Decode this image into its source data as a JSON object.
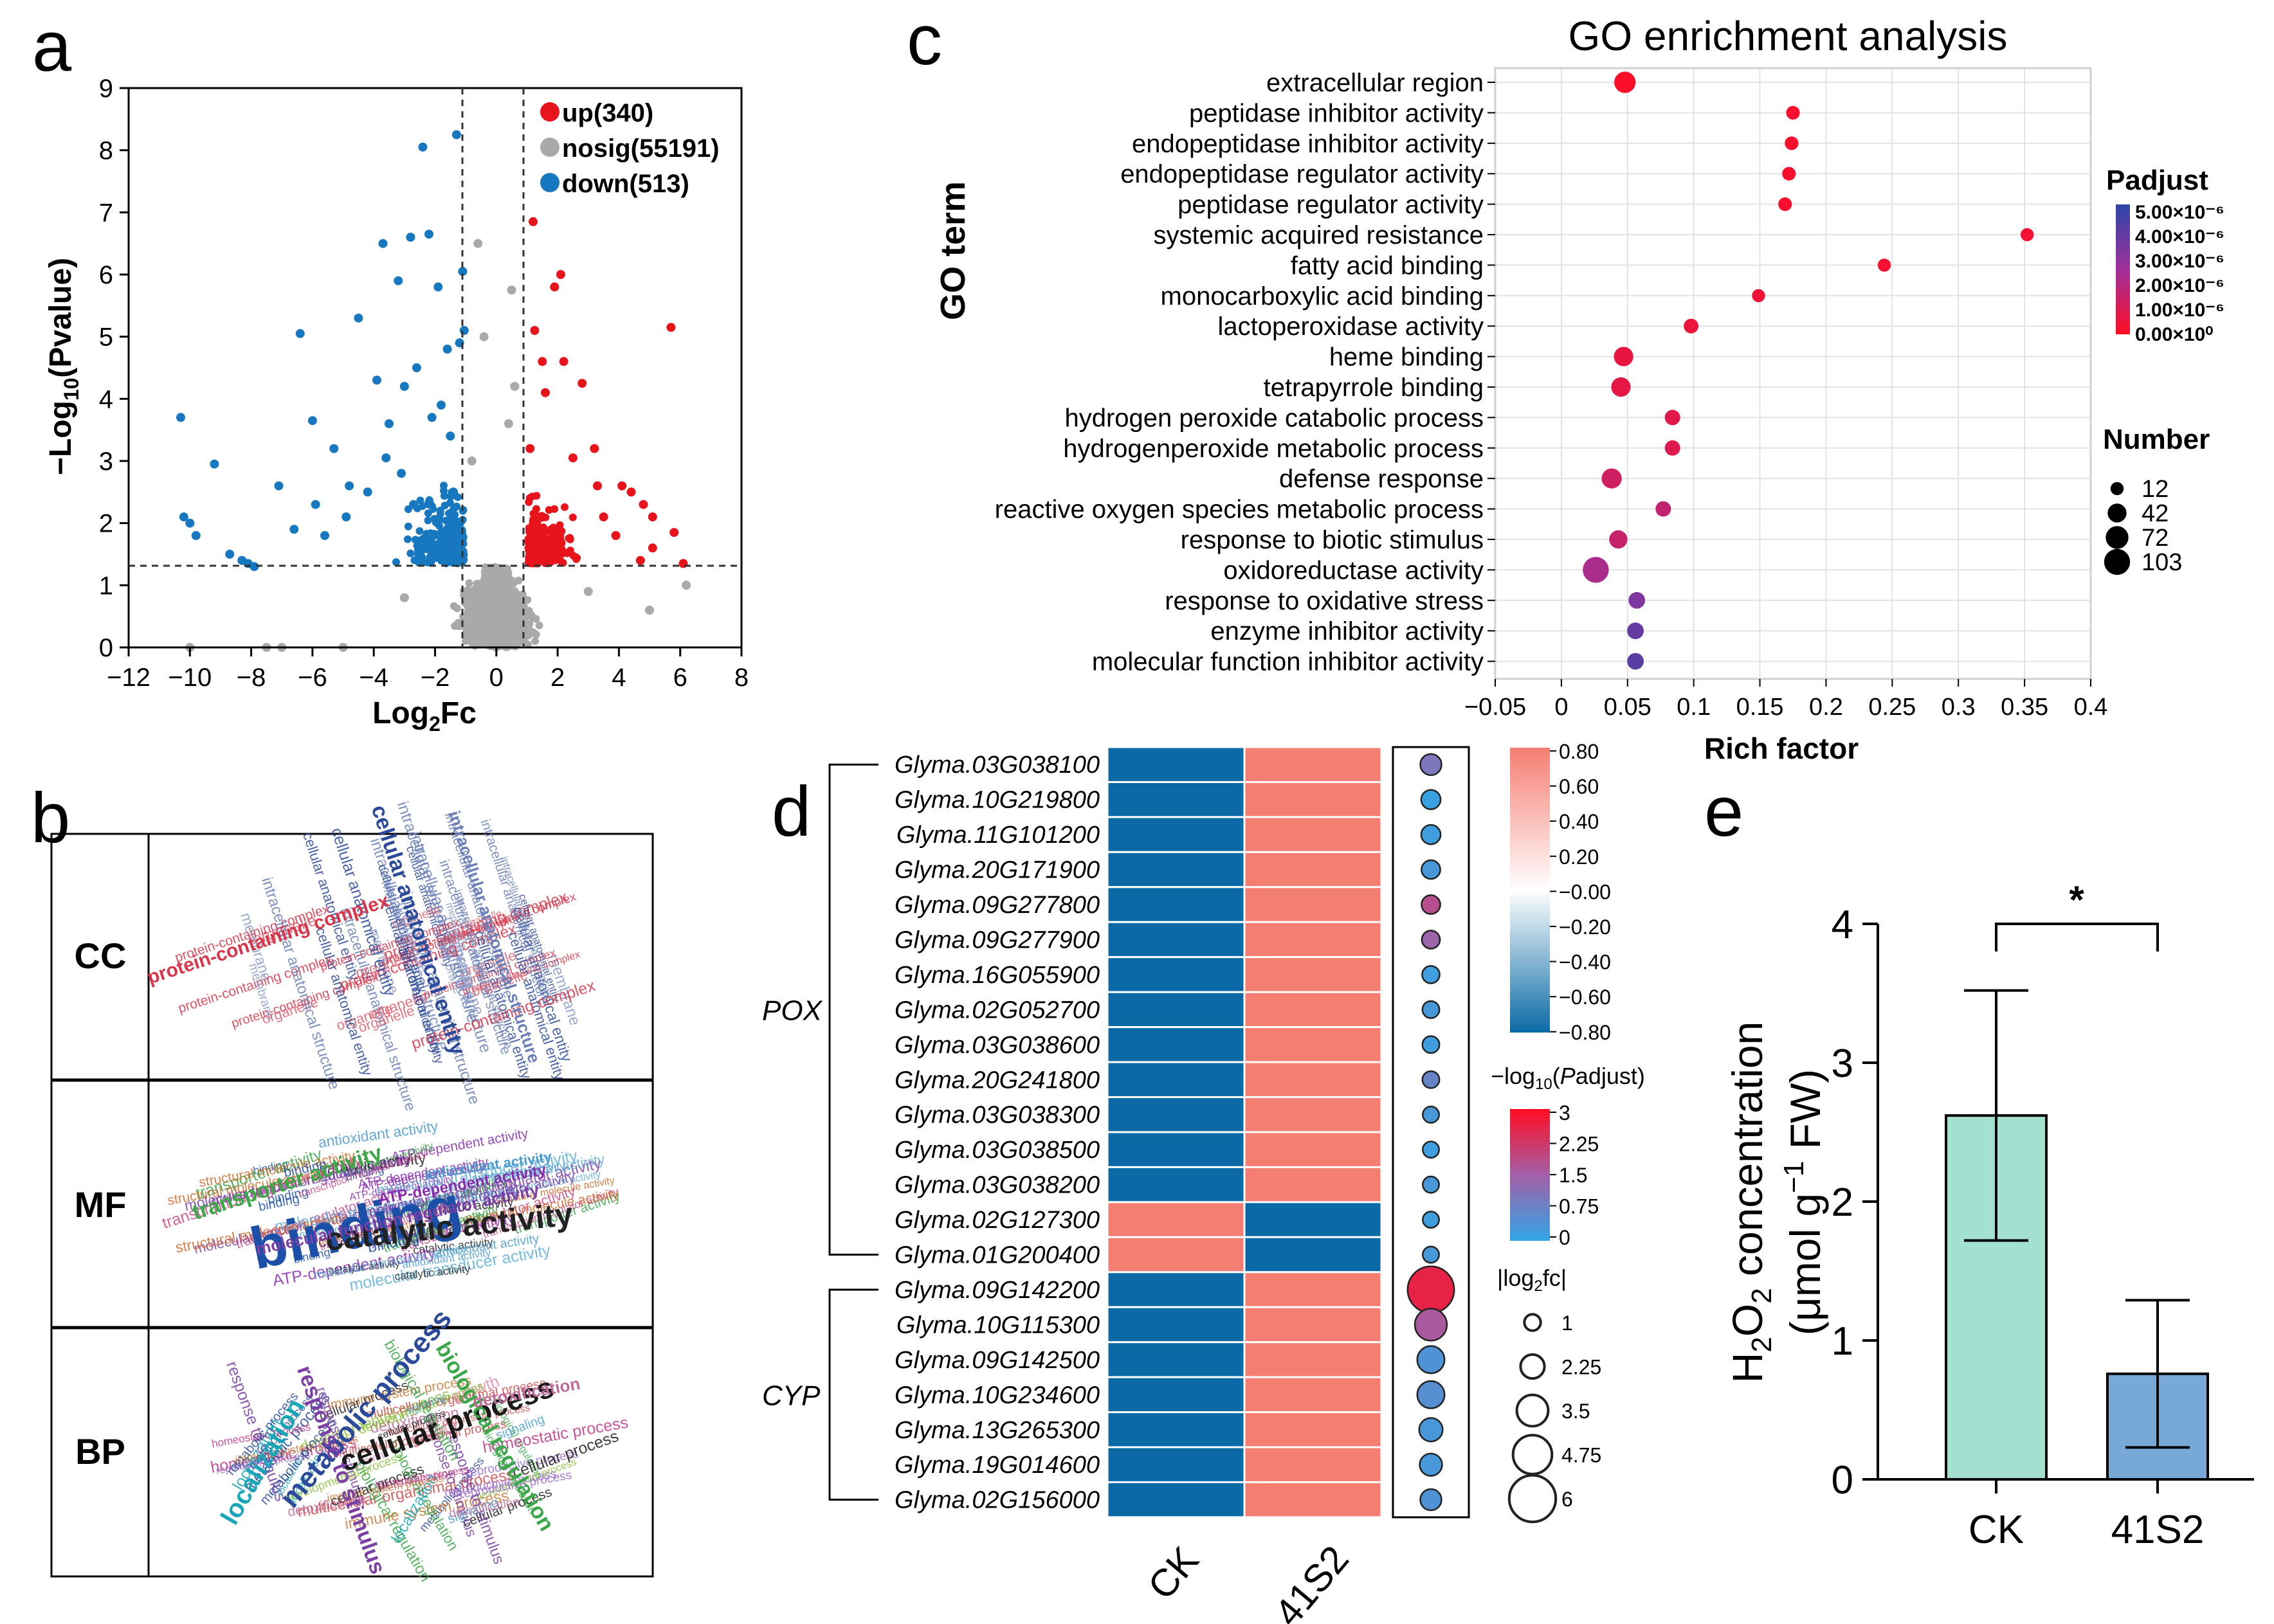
{
  "panels": {
    "a": "a",
    "b": "b",
    "c": "c",
    "d": "d",
    "e": "e"
  },
  "colors": {
    "up": "#e8141c",
    "nosig": "#a9a9a9",
    "down": "#1778c0",
    "bar_ck": "#a3e0cf",
    "bar_41s2": "#78a9d6",
    "heat_high": "#f57e73",
    "heat_low": "#0b6aa6"
  },
  "chart_data": [
    {
      "panel": "a",
      "type": "scatter",
      "title": "",
      "xlabel": "Log2Fc",
      "ylabel": "-Log10(Pvalue)",
      "xlim": [
        -12,
        8
      ],
      "ylim": [
        0,
        9
      ],
      "xticks": [
        "-12",
        "-10",
        "-8",
        "-6",
        "-4",
        "-2",
        "0",
        "2",
        "4",
        "6",
        "8"
      ],
      "yticks": [
        "0",
        "1",
        "2",
        "3",
        "4",
        "5",
        "6",
        "7",
        "8",
        "9"
      ],
      "thresholds": {
        "x": [
          -1,
          1
        ],
        "y": 1.3
      },
      "legend": [
        {
          "key": "up",
          "label": "up(340)"
        },
        {
          "key": "nosig",
          "label": "nosig(55191)"
        },
        {
          "key": "down",
          "label": "down(513)"
        }
      ],
      "labeled_points": {
        "down": [
          [
            -10.3,
            3.7
          ],
          [
            -10.2,
            2.1
          ],
          [
            -10,
            2.0
          ],
          [
            -9.8,
            1.8
          ],
          [
            -9.2,
            2.95
          ],
          [
            -8.7,
            1.5
          ],
          [
            -8.3,
            1.4
          ],
          [
            -8.1,
            1.35
          ],
          [
            -7.9,
            1.3
          ],
          [
            -7.1,
            2.6
          ],
          [
            -6.4,
            5.05
          ],
          [
            -6,
            3.65
          ],
          [
            -5.6,
            1.8
          ],
          [
            -5.3,
            3.2
          ],
          [
            -4.9,
            2.1
          ],
          [
            -4.5,
            5.3
          ],
          [
            -4.2,
            2.5
          ],
          [
            -3.9,
            4.3
          ],
          [
            -3.7,
            6.5
          ],
          [
            -3.5,
            3.6
          ],
          [
            -3.2,
            5.9
          ],
          [
            -3.1,
            2.8
          ],
          [
            -3,
            4.2
          ],
          [
            -2.8,
            6.6
          ],
          [
            -2.6,
            4.5
          ],
          [
            -2.4,
            8.05
          ],
          [
            -2.2,
            6.65
          ],
          [
            -2.1,
            3.7
          ],
          [
            -1.9,
            5.8
          ],
          [
            -1.6,
            4.8
          ],
          [
            -1.5,
            3.4
          ],
          [
            -1.4,
            2.5
          ],
          [
            -1.3,
            8.25
          ],
          [
            -1.1,
            6.05
          ],
          [
            -1.05,
            5.1
          ],
          [
            -1.2,
            4.9
          ],
          [
            -1.8,
            3.9
          ],
          [
            -2.7,
            2.3
          ],
          [
            -3.6,
            3.05
          ],
          [
            -4.8,
            2.6
          ],
          [
            -5.9,
            2.3
          ],
          [
            -6.6,
            1.9
          ]
        ],
        "up": [
          [
            1.1,
            3.2
          ],
          [
            1.2,
            6.85
          ],
          [
            1.25,
            5.1
          ],
          [
            1.5,
            4.6
          ],
          [
            1.6,
            4.1
          ],
          [
            1.9,
            5.8
          ],
          [
            2.1,
            6.0
          ],
          [
            2.2,
            4.6
          ],
          [
            2.5,
            3.05
          ],
          [
            2.8,
            4.25
          ],
          [
            3.2,
            3.2
          ],
          [
            3.3,
            2.6
          ],
          [
            3.5,
            2.1
          ],
          [
            4.1,
            2.6
          ],
          [
            4.4,
            2.5
          ],
          [
            4.8,
            2.3
          ],
          [
            5.1,
            2.1
          ],
          [
            5.7,
            5.15
          ],
          [
            5.8,
            1.85
          ],
          [
            6.1,
            1.35
          ],
          [
            5.1,
            1.6
          ],
          [
            4.7,
            1.4
          ],
          [
            3.9,
            1.8
          ]
        ],
        "nosig": [
          [
            -0.6,
            6.5
          ],
          [
            -0.4,
            5.0
          ],
          [
            0.5,
            5.75
          ],
          [
            -0.8,
            3.0
          ],
          [
            0.4,
            3.6
          ],
          [
            0.6,
            4.2
          ],
          [
            -7,
            0
          ],
          [
            -5,
            0
          ],
          [
            -3,
            0.8
          ],
          [
            3,
            0.9
          ],
          [
            5,
            0.6
          ],
          [
            6.2,
            1.0
          ],
          [
            -10,
            0
          ],
          [
            -7.5,
            0
          ]
        ]
      }
    },
    {
      "panel": "b",
      "type": "table",
      "categories": [
        "CC",
        "MF",
        "BP"
      ],
      "wordclouds": {
        "CC": [
          {
            "word": "protein-containing complex",
            "color": "#d9364a",
            "rotate": -18
          },
          {
            "word": "cellular anatomical entity",
            "color": "#2c4a9a",
            "rotate": 72
          },
          {
            "word": "intracellular anatomical structure",
            "color": "#6a7fb8",
            "rotate": 72
          },
          {
            "word": "membrane",
            "color": "#8a9bc8",
            "rotate": 72
          },
          {
            "word": "organelle",
            "color": "#e0606e",
            "rotate": -18
          }
        ],
        "MF": [
          {
            "word": "binding",
            "color": "#1c50a8",
            "rotate": -12
          },
          {
            "word": "catalytic activity",
            "color": "#222222",
            "rotate": -6
          },
          {
            "word": "transporter activity",
            "color": "#3ca84a",
            "rotate": -18
          },
          {
            "word": "molecular function regulator activity",
            "color": "#7b3fa6",
            "rotate": -12
          },
          {
            "word": "ATP-dependent activity",
            "color": "#8a2bb0",
            "rotate": -10
          },
          {
            "word": "antioxidant activity",
            "color": "#4b9bd1",
            "rotate": -8
          },
          {
            "word": "transcription regulator activity",
            "color": "#c84a8a",
            "rotate": -18
          },
          {
            "word": "molecular transducer activity",
            "color": "#5fb0d9",
            "rotate": -10
          },
          {
            "word": "structural molecule activity",
            "color": "#d46a2a",
            "rotate": -10
          }
        ],
        "BP": [
          {
            "word": "cellular process",
            "color": "#1a1a1a",
            "rotate": -20
          },
          {
            "word": "metabolic process",
            "color": "#2c4a9a",
            "rotate": -50
          },
          {
            "word": "biological regulation",
            "color": "#3ca84a",
            "rotate": 60
          },
          {
            "word": "localization",
            "color": "#19a6b8",
            "rotate": -60
          },
          {
            "word": "response to stimulus",
            "color": "#7b3fa6",
            "rotate": 70
          },
          {
            "word": "detoxification",
            "color": "#c06a9a",
            "rotate": -10
          },
          {
            "word": "growth",
            "color": "#e58aa8",
            "rotate": -20
          },
          {
            "word": "developmental process",
            "color": "#8bbf3a",
            "rotate": -20
          },
          {
            "word": "multicellular organismal process",
            "color": "#d04a4a",
            "rotate": -10
          },
          {
            "word": "reproductive process",
            "color": "#9a6ad0",
            "rotate": -10
          },
          {
            "word": "immune system process",
            "color": "#c97a3a",
            "rotate": -10
          },
          {
            "word": "signaling",
            "color": "#4aa0d0",
            "rotate": -20
          },
          {
            "word": "homeostatic process",
            "color": "#c0388a",
            "rotate": -10
          }
        ]
      }
    },
    {
      "panel": "c",
      "type": "scatter",
      "title": "GO enrichment analysis",
      "xlabel": "Rich factor",
      "ylabel": "GO term",
      "xlim": [
        -0.05,
        0.4
      ],
      "xticks": [
        "−0.05",
        "0",
        "0.05",
        "0.1",
        "0.15",
        "0.2",
        "0.25",
        "0.3",
        "0.35",
        "0.4"
      ],
      "terms": [
        {
          "term": "extracellular region",
          "rich": 0.048,
          "number": 60,
          "padj": 0.1
        },
        {
          "term": "peptidase inhibitor activity",
          "rich": 0.175,
          "number": 14,
          "padj": 0.2
        },
        {
          "term": "endopeptidase inhibitor activity",
          "rich": 0.174,
          "number": 14,
          "padj": 0.2
        },
        {
          "term": "endopeptidase regulator activity",
          "rich": 0.172,
          "number": 14,
          "padj": 0.2
        },
        {
          "term": "peptidase regulator activity",
          "rich": 0.169,
          "number": 14,
          "padj": 0.2
        },
        {
          "term": "systemic acquired resistance",
          "rich": 0.352,
          "number": 12,
          "padj": 0.3
        },
        {
          "term": "fatty acid binding",
          "rich": 0.244,
          "number": 12,
          "padj": 0.3
        },
        {
          "term": "monocarboxylic acid binding",
          "rich": 0.149,
          "number": 12,
          "padj": 0.4
        },
        {
          "term": "lactoperoxidase activity",
          "rich": 0.098,
          "number": 18,
          "padj": 0.5
        },
        {
          "term": "heme binding",
          "rich": 0.047,
          "number": 45,
          "padj": 0.6
        },
        {
          "term": "tetrapyrrole binding",
          "rich": 0.045,
          "number": 45,
          "padj": 0.7
        },
        {
          "term": "hydrogen peroxide catabolic process",
          "rich": 0.084,
          "number": 22,
          "padj": 0.8
        },
        {
          "term": "hydrogenperoxide metabolic process",
          "rich": 0.084,
          "number": 22,
          "padj": 0.9
        },
        {
          "term": "defense response",
          "rich": 0.038,
          "number": 50,
          "padj": 1.3
        },
        {
          "term": "reactive oxygen species metabolic process",
          "rich": 0.077,
          "number": 22,
          "padj": 1.6
        },
        {
          "term": "response to biotic stimulus",
          "rich": 0.043,
          "number": 38,
          "padj": 1.5
        },
        {
          "term": "oxidoreductase activity",
          "rich": 0.026,
          "number": 103,
          "padj": 2.2
        },
        {
          "term": "response to oxidative stress",
          "rich": 0.057,
          "number": 28,
          "padj": 3.2
        },
        {
          "term": "enzyme inhibitor activity",
          "rich": 0.056,
          "number": 28,
          "padj": 3.8
        },
        {
          "term": "molecular function inhibitor activity",
          "rich": 0.056,
          "number": 28,
          "padj": 4.0
        }
      ],
      "padj_legend": {
        "title": "Padjust",
        "ticks": [
          "5.00×10⁻⁶",
          "4.00×10⁻⁶",
          "3.00×10⁻⁶",
          "2.00×10⁻⁶",
          "1.00×10⁻⁶",
          "0.00×10⁰"
        ],
        "max": 5
      },
      "number_legend": {
        "title": "Number",
        "values": [
          12,
          42,
          72,
          103
        ]
      }
    },
    {
      "panel": "d",
      "type": "heatmap",
      "columns": [
        "CK",
        "41S2"
      ],
      "groups": [
        {
          "label": "POX",
          "start": 0,
          "end": 14
        },
        {
          "label": "CYP",
          "start": 15,
          "end": 21
        }
      ],
      "genes": [
        {
          "id": "Glyma.03G038100",
          "ck": -0.8,
          "s2": 0.8,
          "logfc": 1.8,
          "padj": 1.0
        },
        {
          "id": "Glyma.10G219800",
          "ck": -0.8,
          "s2": 0.8,
          "logfc": 1.5,
          "padj": 0.1
        },
        {
          "id": "Glyma.11G101200",
          "ck": -0.8,
          "s2": 0.8,
          "logfc": 1.5,
          "padj": 0.2
        },
        {
          "id": "Glyma.20G171900",
          "ck": -0.8,
          "s2": 0.8,
          "logfc": 1.4,
          "padj": 0.3
        },
        {
          "id": "Glyma.09G277800",
          "ck": -0.8,
          "s2": 0.8,
          "logfc": 1.4,
          "padj": 1.8
        },
        {
          "id": "Glyma.09G277900",
          "ck": -0.8,
          "s2": 0.8,
          "logfc": 1.3,
          "padj": 1.4
        },
        {
          "id": "Glyma.16G055900",
          "ck": -0.8,
          "s2": 0.8,
          "logfc": 1.2,
          "padj": 0.2
        },
        {
          "id": "Glyma.02G052700",
          "ck": -0.8,
          "s2": 0.8,
          "logfc": 1.1,
          "padj": 0.3
        },
        {
          "id": "Glyma.03G038600",
          "ck": -0.8,
          "s2": 0.8,
          "logfc": 1.1,
          "padj": 0.2
        },
        {
          "id": "Glyma.20G241800",
          "ck": -0.8,
          "s2": 0.8,
          "logfc": 1.1,
          "padj": 0.7
        },
        {
          "id": "Glyma.03G038300",
          "ck": -0.8,
          "s2": 0.8,
          "logfc": 1.0,
          "padj": 0.3
        },
        {
          "id": "Glyma.03G038500",
          "ck": -0.8,
          "s2": 0.8,
          "logfc": 1.0,
          "padj": 0.2
        },
        {
          "id": "Glyma.03G038200",
          "ck": -0.8,
          "s2": 0.8,
          "logfc": 1.0,
          "padj": 0.3
        },
        {
          "id": "Glyma.02G127300",
          "ck": 0.8,
          "s2": -0.8,
          "logfc": 1.0,
          "padj": 0.2
        },
        {
          "id": "Glyma.01G200400",
          "ck": 0.8,
          "s2": -0.8,
          "logfc": 1.0,
          "padj": 0.3
        },
        {
          "id": "Glyma.09G142200",
          "ck": -0.8,
          "s2": 0.8,
          "logfc": 6.0,
          "padj": 2.6
        },
        {
          "id": "Glyma.10G115300",
          "ck": -0.8,
          "s2": 0.8,
          "logfc": 3.6,
          "padj": 1.6
        },
        {
          "id": "Glyma.09G142500",
          "ck": -0.8,
          "s2": 0.8,
          "logfc": 2.8,
          "padj": 0.4
        },
        {
          "id": "Glyma.10G234600",
          "ck": -0.8,
          "s2": 0.8,
          "logfc": 2.8,
          "padj": 0.5
        },
        {
          "id": "Glyma.13G265300",
          "ck": -0.8,
          "s2": 0.8,
          "logfc": 2.2,
          "padj": 0.3
        },
        {
          "id": "Glyma.19G014600",
          "ck": -0.8,
          "s2": 0.8,
          "logfc": 2.0,
          "padj": 0.3
        },
        {
          "id": "Glyma.02G156000",
          "ck": -0.8,
          "s2": 0.8,
          "logfc": 1.8,
          "padj": 0.4
        }
      ],
      "color_legend": {
        "ticks": [
          "0.80",
          "0.60",
          "0.40",
          "0.20",
          "−0.00",
          "−0.20",
          "−0.40",
          "−0.60",
          "−0.80"
        ],
        "range": [
          -0.8,
          0.8
        ]
      },
      "padj_legend": {
        "title": "−log10(Padjust)",
        "ticks": [
          "3",
          "2.25",
          "1.5",
          "0.75",
          "0"
        ],
        "max": 3
      },
      "size_legend": {
        "title": "|log2fc|",
        "values": [
          "1",
          "2.25",
          "3.5",
          "4.75",
          "6"
        ]
      }
    },
    {
      "panel": "e",
      "type": "bar",
      "categories": [
        "CK",
        "41S2"
      ],
      "values": [
        2.62,
        0.76
      ],
      "errors": [
        0.9,
        0.53
      ],
      "ylabel": "H2O2 concentration (μmol g−1 FW)",
      "ylim": [
        0,
        4
      ],
      "yticks": [
        "0",
        "1",
        "2",
        "3",
        "4"
      ],
      "significance": "*"
    }
  ]
}
